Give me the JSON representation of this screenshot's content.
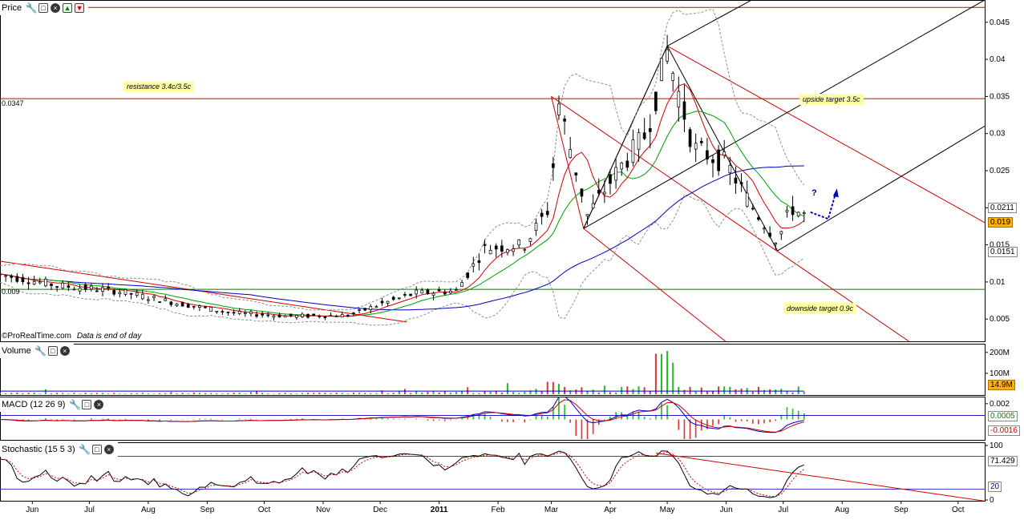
{
  "panels": {
    "price": {
      "title": "Price"
    },
    "volume": {
      "title": "Volume"
    },
    "macd": {
      "title": "MACD (12 26 9)"
    },
    "stochastic": {
      "title": "Stochastic (15 5 3)"
    }
  },
  "credit": {
    "source": "©ProRealTime.com",
    "note": "Data is end of day"
  },
  "annotations": {
    "resistance": "resistance 3.4c/3.5c",
    "upside": "upside target 3.5c",
    "downside": "downside target 0.9c",
    "question": "?",
    "level_left": "0.0347",
    "level_left2": "0.009"
  },
  "badges": {
    "price_upper": "0.0211",
    "price_current": "0.019",
    "price_lower": "0.0151",
    "volume_current": "14.9M",
    "macd_signal": "0.0005",
    "macd_value": "-0.0016",
    "stoch_k": "71.429",
    "stoch_level": "20"
  },
  "colors": {
    "up_candle": "#ffffff",
    "down_candle": "#000000",
    "horizontal_lines": "#d00000",
    "support_line": "#008000",
    "ma_long": "#0000c0",
    "ma_mid": "#00a000",
    "ma_short": "#d00000",
    "bollinger": "#909090",
    "volume_up": "#22bb22",
    "volume_down": "#dd3333",
    "current_badge": "#ffb000"
  },
  "chart_data": {
    "type": "candlestick",
    "x_axis": {
      "labels": [
        "Jun",
        "Jul",
        "Aug",
        "Sep",
        "Oct",
        "Nov",
        "Dec",
        "2011",
        "Feb",
        "Mar",
        "Apr",
        "May",
        "Jun",
        "Jul",
        "Aug",
        "Sep",
        "Oct"
      ],
      "start": "2010-05-15",
      "end": "2011-10-15"
    },
    "price": {
      "y_ticks": [
        0.005,
        0.01,
        0.015,
        0.02,
        0.025,
        0.03,
        0.035,
        0.04,
        0.045
      ],
      "ylim": [
        0.002,
        0.048
      ],
      "horizontal_levels": [
        0.047,
        0.0347,
        0.009
      ],
      "closes_key_points": [
        {
          "date": "2010-05-15",
          "close": 0.011
        },
        {
          "date": "2010-06-15",
          "close": 0.0095
        },
        {
          "date": "2010-07-15",
          "close": 0.0088
        },
        {
          "date": "2010-08-15",
          "close": 0.0072
        },
        {
          "date": "2010-09-15",
          "close": 0.0058
        },
        {
          "date": "2010-10-15",
          "close": 0.0054
        },
        {
          "date": "2010-11-15",
          "close": 0.0055
        },
        {
          "date": "2010-12-01",
          "close": 0.007
        },
        {
          "date": "2010-12-20",
          "close": 0.0085
        },
        {
          "date": "2011-01-10",
          "close": 0.0088
        },
        {
          "date": "2011-01-25",
          "close": 0.0145
        },
        {
          "date": "2011-02-15",
          "close": 0.015
        },
        {
          "date": "2011-02-28",
          "close": 0.02
        },
        {
          "date": "2011-03-05",
          "close": 0.034
        },
        {
          "date": "2011-03-20",
          "close": 0.019
        },
        {
          "date": "2011-04-05",
          "close": 0.025
        },
        {
          "date": "2011-04-20",
          "close": 0.03
        },
        {
          "date": "2011-05-01",
          "close": 0.041
        },
        {
          "date": "2011-05-15",
          "close": 0.028
        },
        {
          "date": "2011-06-01",
          "close": 0.026
        },
        {
          "date": "2011-06-15",
          "close": 0.02
        },
        {
          "date": "2011-06-28",
          "close": 0.0155
        },
        {
          "date": "2011-07-05",
          "close": 0.02
        },
        {
          "date": "2011-07-12",
          "close": 0.019
        }
      ]
    },
    "volume": {
      "y_ticks": [
        "100M",
        "200M"
      ],
      "ylim": [
        0,
        230000000
      ]
    },
    "macd": {
      "y_ticks": [
        0.002,
        0.0005,
        -0.0016
      ],
      "ylim": [
        -0.0025,
        0.0028
      ]
    },
    "stochastic": {
      "y_ticks": [
        0,
        20,
        71.429,
        100
      ],
      "levels": [
        20,
        80
      ],
      "ylim": [
        0,
        100
      ]
    }
  }
}
